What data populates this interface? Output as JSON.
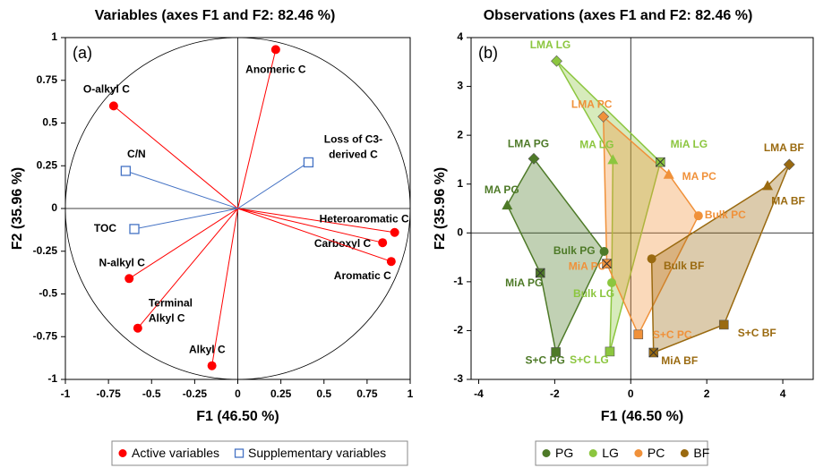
{
  "chart_data": [
    {
      "type": "scatter",
      "title": "Variables (axes F1 and F2: 82.46 %)",
      "panel_label": "(a)",
      "x_label": "F1 (46.50 %)",
      "y_label": "F2 (35.96 %)",
      "xlim": [
        -1,
        1
      ],
      "ylim": [
        -1,
        1
      ],
      "xticks": [
        -1,
        -0.75,
        -0.5,
        -0.25,
        0,
        0.25,
        0.5,
        0.75,
        1
      ],
      "yticks": [
        -1,
        -0.75,
        -0.5,
        -0.25,
        0,
        0.25,
        0.5,
        0.75,
        1
      ],
      "correlation_circle": true,
      "series": [
        {
          "name": "Active variables",
          "color": "#ff0000",
          "marker": "circle",
          "vectors": true,
          "x": [
            0.22,
            -0.72,
            0.91,
            0.84,
            0.89,
            -0.63,
            -0.58,
            -0.15
          ],
          "values": [
            0.93,
            0.6,
            -0.14,
            -0.2,
            -0.31,
            -0.41,
            -0.7,
            -0.92
          ],
          "labels": [
            [
              "Anomeric C"
            ],
            [
              "O-alkyl C"
            ],
            [
              "Heteroaromatic C"
            ],
            [
              "Carboxyl C"
            ],
            [
              "Aromatic C"
            ],
            [
              "N-alkyl C"
            ],
            [
              "Terminal",
              "Alkyl C"
            ],
            [
              "Alkyl C"
            ]
          ]
        },
        {
          "name": "Supplementary variables",
          "color": "#4472c4",
          "marker": "square-open",
          "vectors": true,
          "x": [
            0.41,
            -0.65,
            -0.6
          ],
          "values": [
            0.27,
            0.22,
            -0.12
          ],
          "labels": [
            [
              "Loss of C3-",
              "derived C"
            ],
            [
              "C/N"
            ],
            [
              "TOC"
            ]
          ]
        }
      ]
    },
    {
      "type": "scatter",
      "title": "Observations (axes F1 and F2: 82.46 %)",
      "panel_label": "(b)",
      "x_label": "F1 (46.50 %)",
      "y_label": "F2 (35.96 %)",
      "xlim": [
        -4.2,
        4.8
      ],
      "ylim": [
        -3,
        4
      ],
      "xticks": [
        -4,
        -2,
        0,
        2,
        4
      ],
      "yticks": [
        -3,
        -2,
        -1,
        0,
        1,
        2,
        3,
        4
      ],
      "hulls": true,
      "series": [
        {
          "name": "PG",
          "color": "#4e7a28",
          "markers": [
            "diamond",
            "circle",
            "square",
            "cross-square",
            "triangle"
          ],
          "x": [
            -2.55,
            -0.7,
            -1.97,
            -2.38,
            -3.25
          ],
          "values": [
            1.52,
            -0.38,
            -2.44,
            -0.82,
            0.57
          ],
          "labels": [
            [
              "LMA PG"
            ],
            [
              "Bulk PG"
            ],
            [
              "S+C PG"
            ],
            [
              "MiA PG"
            ],
            [
              "MA PG"
            ]
          ]
        },
        {
          "name": "LG",
          "color": "#8cc63f",
          "markers": [
            "diamond",
            "cross-square",
            "square",
            "circle",
            "triangle"
          ],
          "x": [
            -1.95,
            0.78,
            -0.55,
            -0.5,
            -0.47
          ],
          "values": [
            3.52,
            1.45,
            -2.43,
            -1.02,
            1.5
          ],
          "labels": [
            [
              "LMA LG"
            ],
            [
              "MiA LG"
            ],
            [
              "S+C LG"
            ],
            [
              "Bulk LG"
            ],
            [
              "MA LG"
            ]
          ]
        },
        {
          "name": "PC",
          "color": "#f0913a",
          "markers": [
            "diamond",
            "triangle",
            "circle",
            "square",
            "cross-square"
          ],
          "x": [
            -0.72,
            1.0,
            1.78,
            0.2,
            -0.63
          ],
          "values": [
            2.38,
            1.2,
            0.35,
            -2.08,
            -0.63
          ],
          "labels": [
            [
              "LMA PC"
            ],
            [
              "MA PC"
            ],
            [
              "Bulk PC"
            ],
            [
              "S+C PC"
            ],
            [
              "MiA PC"
            ]
          ]
        },
        {
          "name": "BF",
          "color": "#9a6a10",
          "markers": [
            "diamond",
            "square",
            "cross-square",
            "circle",
            "triangle"
          ],
          "x": [
            4.17,
            2.45,
            0.6,
            0.55,
            3.6
          ],
          "values": [
            1.4,
            -1.88,
            -2.45,
            -0.53,
            0.97
          ],
          "labels": [
            [
              "LMA BF"
            ],
            [
              "S+C BF"
            ],
            [
              "MiA BF"
            ],
            [
              "Bulk BF"
            ],
            [
              "MA BF"
            ]
          ]
        }
      ]
    }
  ]
}
